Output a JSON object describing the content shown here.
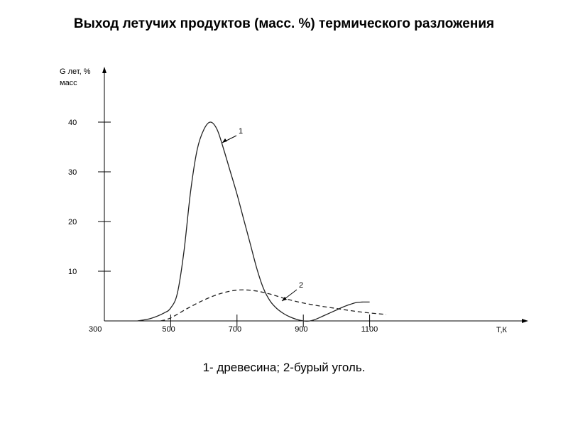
{
  "chart_data": {
    "type": "line",
    "title": "Выход летучих продуктов (масс. %) термического разложения",
    "ylabel_line1": "G лет, %",
    "ylabel_line2": "масс",
    "xlabel": "Т,К",
    "x_ticks": [
      300,
      500,
      700,
      900,
      1100
    ],
    "y_ticks": [
      10,
      20,
      30,
      40
    ],
    "xlim": [
      300,
      1570
    ],
    "ylim": [
      0,
      50
    ],
    "series": [
      {
        "name": "1",
        "style": "solid",
        "x": [
          400,
          440,
          480,
          500,
          520,
          540,
          560,
          580,
          600,
          620,
          640,
          660,
          680,
          700,
          720,
          740,
          760,
          780,
          800,
          820,
          840,
          860,
          880,
          900,
          920,
          940,
          960,
          980,
          1000,
          1020,
          1040,
          1060,
          1080,
          1100
        ],
        "y": [
          0,
          0.5,
          1.6,
          2.6,
          5.5,
          14,
          26,
          34.5,
          38.5,
          40,
          38.5,
          34.5,
          30,
          25.5,
          20.5,
          15.5,
          10.5,
          6.5,
          4.0,
          2.5,
          1.5,
          0.8,
          0.3,
          0,
          0,
          0.4,
          1.0,
          1.6,
          2.2,
          2.8,
          3.3,
          3.7,
          3.8,
          3.8
        ]
      },
      {
        "name": "2",
        "style": "dashed",
        "x": [
          470,
          500,
          550,
          600,
          650,
          700,
          750,
          800,
          850,
          900,
          950,
          1000,
          1050,
          1100,
          1150
        ],
        "y": [
          0,
          0.6,
          2.5,
          4.2,
          5.5,
          6.2,
          6.1,
          5.4,
          4.4,
          3.6,
          3.0,
          2.5,
          2.0,
          1.6,
          1.3
        ]
      }
    ],
    "legend": "1- древесина; 2-бурый уголь."
  }
}
